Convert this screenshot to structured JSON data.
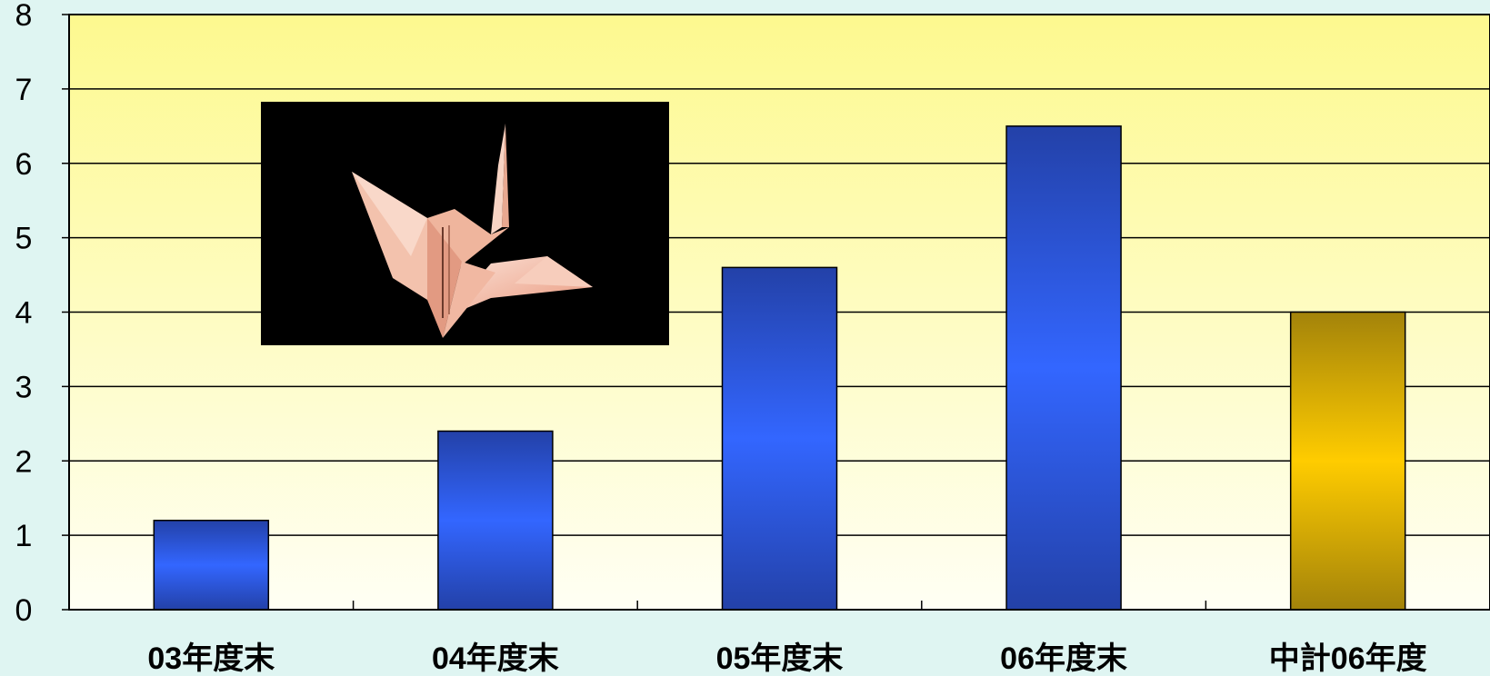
{
  "colors": {
    "page_background": "#dff5f2",
    "plot_top": "#fdf98f",
    "plot_bottom": "#fffff4",
    "bar_blue_dark": "#2341a8",
    "bar_blue_light": "#3366ff",
    "bar_gold_dark": "#a3830a",
    "bar_gold_light": "#ffcc00",
    "photo_background": "#000000",
    "crane_paper": "#f6b9a2"
  },
  "inset_image": {
    "icon": "origami-crane-photo"
  },
  "chart_data": {
    "type": "bar",
    "categories": [
      "03年度末",
      "04年度末",
      "05年度末",
      "06年度末",
      "中計06年度"
    ],
    "values": [
      1.2,
      2.4,
      4.6,
      6.5,
      4.0
    ],
    "bar_colors": [
      "blue",
      "blue",
      "blue",
      "blue",
      "gold"
    ],
    "ylim": [
      0,
      8
    ],
    "yticks": [
      "0",
      "1",
      "2",
      "3",
      "4",
      "5",
      "6",
      "7",
      "8"
    ],
    "grid": true,
    "legend": "none",
    "title": "",
    "xlabel": "",
    "ylabel": ""
  }
}
